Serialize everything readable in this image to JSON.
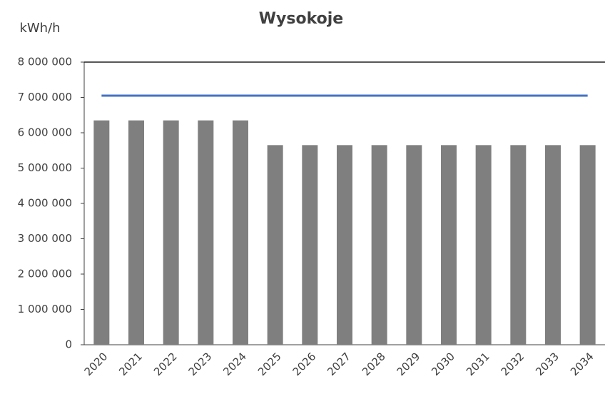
{
  "chart_data": {
    "type": "bar",
    "title": "Wysokoje",
    "y_label": "kWh/h",
    "categories": [
      "2020",
      "2021",
      "2022",
      "2023",
      "2024",
      "2025",
      "2026",
      "2027",
      "2028",
      "2029",
      "2030",
      "2031",
      "2032",
      "2033",
      "2034"
    ],
    "series": [
      {
        "type": "bar",
        "color": "#7f7f7f",
        "values": [
          6350000,
          6350000,
          6350000,
          6350000,
          6350000,
          5650000,
          5650000,
          5650000,
          5650000,
          5650000,
          5650000,
          5650000,
          5650000,
          5650000,
          5650000
        ]
      },
      {
        "type": "line",
        "color": "#4472c4",
        "values": [
          7050000,
          7050000,
          7050000,
          7050000,
          7050000,
          7050000,
          7050000,
          7050000,
          7050000,
          7050000,
          7050000,
          7050000,
          7050000,
          7050000,
          7050000
        ]
      }
    ],
    "ylim": [
      0,
      8000000
    ],
    "yticks": [
      0,
      {
        "value": 1000000,
        "label": "1 000 000"
      },
      {
        "value": 2000000,
        "label": "2 000 000"
      },
      {
        "value": 3000000,
        "label": "3 000 000"
      },
      {
        "value": 4000000,
        "label": "4 000 000"
      },
      {
        "value": 5000000,
        "label": "5 000 000"
      },
      {
        "value": 6000000,
        "label": "6 000 000"
      },
      {
        "value": 7000000,
        "label": "7 000 000"
      },
      {
        "value": 8000000,
        "label": "8 000 000"
      }
    ],
    "grid": false
  }
}
